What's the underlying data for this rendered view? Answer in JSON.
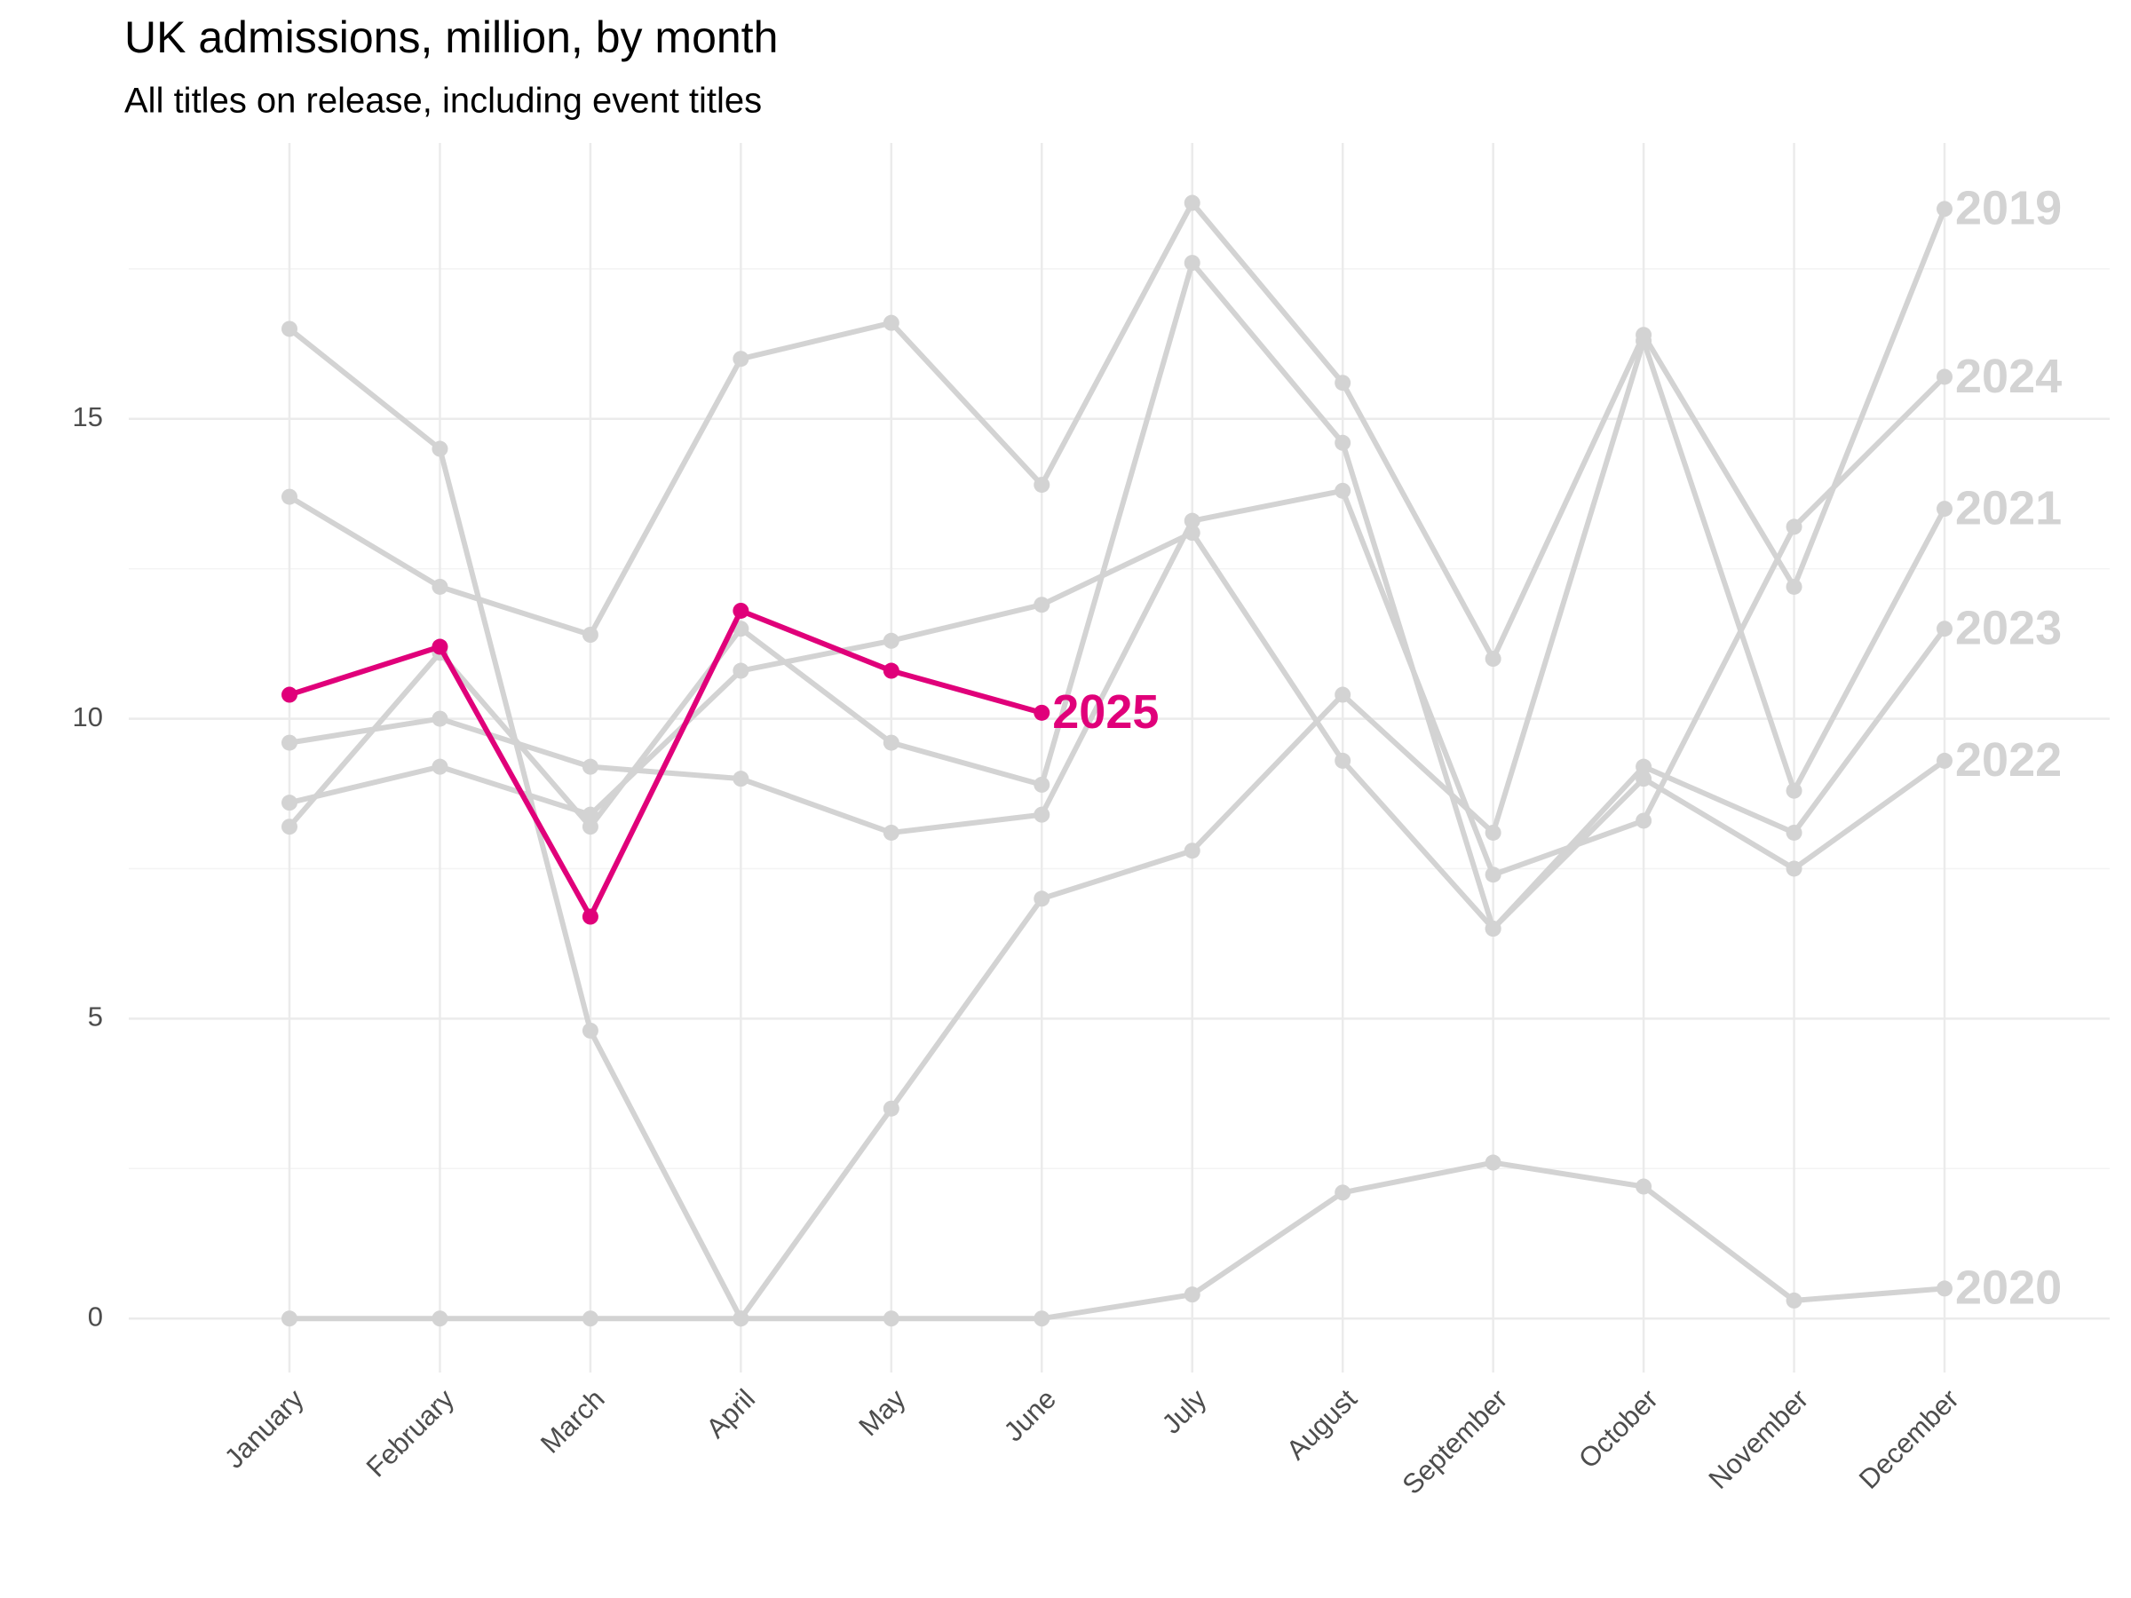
{
  "chart_data": {
    "type": "line",
    "title": "UK admissions, million, by month",
    "subtitle": "All titles on release, including event titles",
    "categories": [
      "January",
      "February",
      "March",
      "April",
      "May",
      "June",
      "July",
      "August",
      "September",
      "October",
      "November",
      "December"
    ],
    "series": [
      {
        "name": "2019",
        "color": "#d3d3d3",
        "values": [
          13.7,
          12.2,
          11.4,
          16.0,
          16.6,
          13.9,
          18.6,
          15.6,
          11.0,
          16.4,
          12.2,
          18.5
        ]
      },
      {
        "name": "2020",
        "color": "#d3d3d3",
        "values": [
          16.5,
          14.5,
          4.8,
          0,
          0,
          0,
          0.4,
          2.1,
          2.6,
          2.2,
          0.3,
          0.5
        ]
      },
      {
        "name": "2021",
        "color": "#d3d3d3",
        "values": [
          0,
          0,
          0,
          0,
          3.5,
          7.0,
          7.8,
          10.4,
          8.1,
          16.3,
          8.8,
          13.5
        ]
      },
      {
        "name": "2022",
        "color": "#d3d3d3",
        "values": [
          8.2,
          11.1,
          8.2,
          11.5,
          9.6,
          8.9,
          17.6,
          14.6,
          6.5,
          9.0,
          7.5,
          9.3
        ]
      },
      {
        "name": "2023",
        "color": "#d3d3d3",
        "values": [
          8.6,
          9.2,
          8.4,
          10.8,
          11.3,
          11.9,
          13.1,
          9.3,
          6.5,
          9.2,
          8.1,
          11.5
        ]
      },
      {
        "name": "2024",
        "color": "#d3d3d3",
        "values": [
          9.6,
          10.0,
          9.2,
          9.0,
          8.1,
          8.4,
          13.3,
          13.8,
          7.4,
          8.3,
          13.2,
          15.7
        ]
      },
      {
        "name": "2025",
        "color": "#e0007a",
        "values": [
          10.4,
          11.2,
          6.7,
          11.8,
          10.8,
          10.1,
          null,
          null,
          null,
          null,
          null,
          null
        ]
      }
    ],
    "ylim": [
      -0.9,
      19.6
    ],
    "yticks": [
      0,
      5,
      10,
      15
    ],
    "minor_yticks": [
      2.5,
      7.5,
      12.5,
      17.5
    ],
    "grid": true
  }
}
